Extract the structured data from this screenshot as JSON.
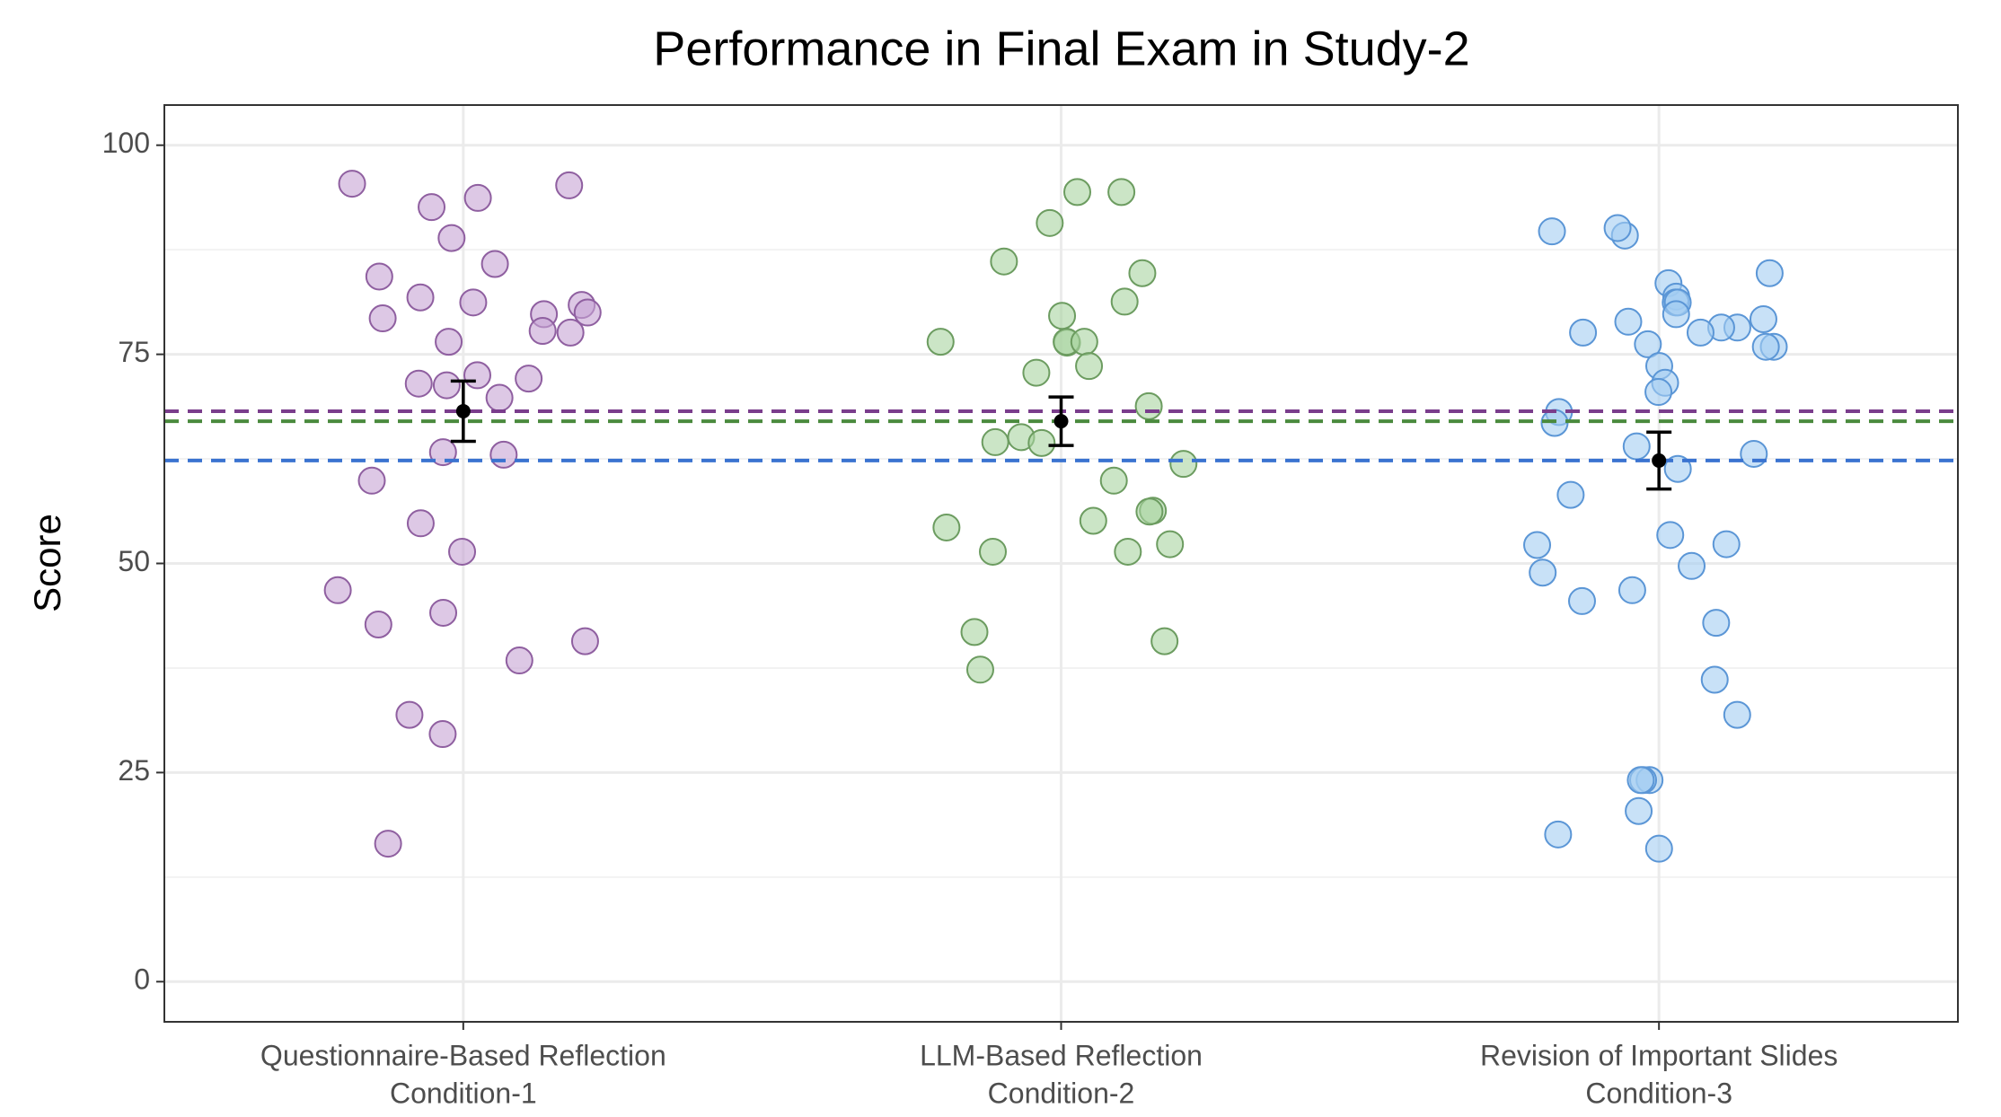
{
  "chart_data": {
    "type": "strip",
    "title": "Performance in Final Exam in Study-2",
    "y_label": "Score",
    "categories": [
      [
        "Questionnaire-Based Reflection",
        "Condition-1"
      ],
      [
        "LLM-Based Reflection",
        "Condition-2"
      ],
      [
        "Revision of Important Slides",
        "Condition-3"
      ]
    ],
    "ylim": [
      -4.8,
      104.8
    ],
    "yticks": [
      0,
      25,
      50,
      75,
      100
    ],
    "yminor": [
      12.5,
      37.5,
      62.5,
      87.5
    ],
    "grid": true,
    "series": [
      {
        "color": "#c6a3d3",
        "stroke": "#8f5fa0",
        "line_color": "#7a3d8c",
        "mean": 68.2,
        "error": 3.6,
        "values": [
          95.2,
          95.4,
          93.7,
          92.6,
          88.9,
          85.8,
          84.3,
          81.8,
          81.2,
          80.9,
          79.8,
          79.3,
          80,
          77.8,
          76.5,
          77.6,
          71.3,
          69.8,
          71.5,
          72.1,
          72.5,
          63,
          63.3,
          59.9,
          54.8,
          51.4,
          46.8,
          42.7,
          44.1,
          40.7,
          38.4,
          31.9,
          29.6,
          16.5
        ]
      },
      {
        "color": "#a9d4a0",
        "stroke": "#6c9c60",
        "line_color": "#4a8a3d",
        "mean": 67.0,
        "error": 2.9,
        "values": [
          94.4,
          94.4,
          90.7,
          86.1,
          84.7,
          81.3,
          79.6,
          76.4,
          76.5,
          76.5,
          76.5,
          73.6,
          72.8,
          68.8,
          65.1,
          64.4,
          64.5,
          61.9,
          59.9,
          56.3,
          56.2,
          54.3,
          55.1,
          52.3,
          51.4,
          51.4,
          41.8,
          40.7,
          37.3
        ]
      },
      {
        "color": "#a3cdf2",
        "stroke": "#5b96d6",
        "line_color": "#3a73d0",
        "mean": 62.3,
        "error": 3.4,
        "values": [
          89.7,
          89.2,
          90.1,
          84.7,
          83.5,
          81.9,
          81.2,
          81.2,
          79.8,
          78.9,
          79.2,
          78.2,
          77.6,
          78.2,
          77.6,
          75.9,
          76.2,
          75.9,
          73.6,
          71.6,
          70.5,
          68.1,
          66.8,
          64,
          63.1,
          61.3,
          58.2,
          53.4,
          52.3,
          52.2,
          49.7,
          48.9,
          46.8,
          45.5,
          42.9,
          36.1,
          31.9,
          24.1,
          24.1,
          24.1,
          20.4,
          17.6,
          15.9
        ]
      }
    ]
  }
}
